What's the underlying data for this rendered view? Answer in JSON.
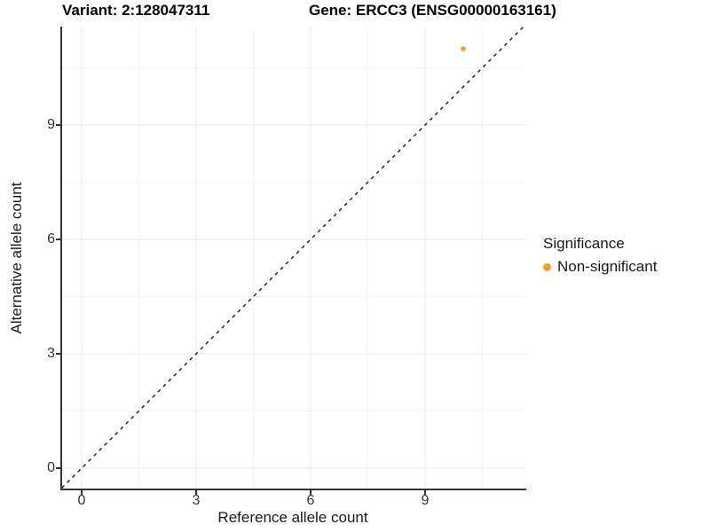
{
  "chart_data": {
    "type": "scatter",
    "title_left": "Variant: 2:128047311",
    "title_right": "Gene: ERCC3 (ENSG00000163161)",
    "xlabel": "Reference allele count",
    "ylabel": "Alternative allele count",
    "x_ticks": [
      0,
      3,
      6,
      9
    ],
    "y_ticks": [
      0,
      3,
      6,
      9
    ],
    "xlim": [
      -0.56,
      11.65
    ],
    "ylim": [
      -0.58,
      11.58
    ],
    "grid": "major+minor",
    "minor_tick_step": 1.5,
    "reference_line": {
      "type": "identity",
      "slope": 1,
      "intercept": 0,
      "style": "dashed",
      "color": "#1a1a1a"
    },
    "series": [
      {
        "name": "Non-significant",
        "color": "#F89C28",
        "points": [
          {
            "x": 10,
            "y": 11
          }
        ]
      }
    ],
    "legend": {
      "title": "Significance",
      "position": "right",
      "entries": [
        {
          "label": "Non-significant",
          "color": "#F89C28"
        }
      ]
    }
  },
  "colors": {
    "grid_major": "#e7e7e7",
    "grid_minor": "#f2f2f2",
    "axis_line": "#333333",
    "tick_text": "#333333",
    "title_text": "#000000"
  }
}
